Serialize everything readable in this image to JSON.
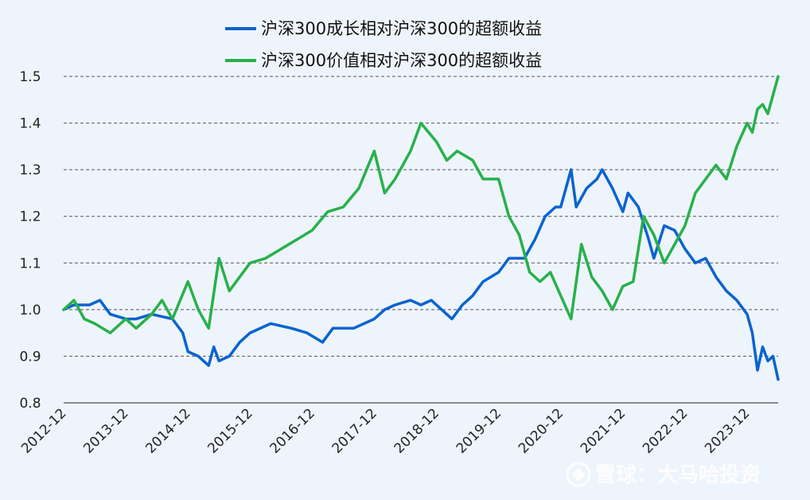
{
  "chart_data": {
    "type": "line",
    "title": "",
    "xlabel": "",
    "ylabel": "",
    "x_ticks": [
      "2012-12",
      "2013-12",
      "2014-12",
      "2015-12",
      "2016-12",
      "2017-12",
      "2018-12",
      "2019-12",
      "2020-12",
      "2021-12",
      "2022-12",
      "2023-12"
    ],
    "y_ticks": [
      "0.8",
      "0.9",
      "1.0",
      "1.1",
      "1.2",
      "1.3",
      "1.4",
      "1.5"
    ],
    "ylim": [
      0.8,
      1.5
    ],
    "xlim": [
      "2012-12",
      "2024-06"
    ],
    "grid": "horizontal dashed",
    "legend_position": "top-center",
    "series": [
      {
        "name": "沪深300成长相对沪深300的超额收益",
        "color": "#0a63cf",
        "points": [
          [
            "2012-12",
            1.0
          ],
          [
            "2013-02",
            1.01
          ],
          [
            "2013-05",
            1.01
          ],
          [
            "2013-07",
            1.02
          ],
          [
            "2013-09",
            0.99
          ],
          [
            "2013-12",
            0.98
          ],
          [
            "2014-02",
            0.98
          ],
          [
            "2014-05",
            0.99
          ],
          [
            "2014-09",
            0.98
          ],
          [
            "2014-11",
            0.95
          ],
          [
            "2014-12",
            0.91
          ],
          [
            "2015-02",
            0.9
          ],
          [
            "2015-04",
            0.88
          ],
          [
            "2015-05",
            0.92
          ],
          [
            "2015-06",
            0.89
          ],
          [
            "2015-08",
            0.9
          ],
          [
            "2015-10",
            0.93
          ],
          [
            "2015-12",
            0.95
          ],
          [
            "2016-04",
            0.97
          ],
          [
            "2016-08",
            0.96
          ],
          [
            "2016-11",
            0.95
          ],
          [
            "2017-02",
            0.93
          ],
          [
            "2017-04",
            0.96
          ],
          [
            "2017-08",
            0.96
          ],
          [
            "2017-12",
            0.98
          ],
          [
            "2018-02",
            1.0
          ],
          [
            "2018-04",
            1.01
          ],
          [
            "2018-07",
            1.02
          ],
          [
            "2018-09",
            1.01
          ],
          [
            "2018-11",
            1.02
          ],
          [
            "2019-02",
            0.99
          ],
          [
            "2019-03",
            0.98
          ],
          [
            "2019-05",
            1.01
          ],
          [
            "2019-07",
            1.03
          ],
          [
            "2019-09",
            1.06
          ],
          [
            "2019-12",
            1.08
          ],
          [
            "2020-02",
            1.11
          ],
          [
            "2020-05",
            1.11
          ],
          [
            "2020-07",
            1.15
          ],
          [
            "2020-09",
            1.2
          ],
          [
            "2020-11",
            1.22
          ],
          [
            "2020-12",
            1.22
          ],
          [
            "2021-02",
            1.3
          ],
          [
            "2021-03",
            1.22
          ],
          [
            "2021-05",
            1.26
          ],
          [
            "2021-07",
            1.28
          ],
          [
            "2021-08",
            1.3
          ],
          [
            "2021-10",
            1.26
          ],
          [
            "2021-12",
            1.21
          ],
          [
            "2022-01",
            1.25
          ],
          [
            "2022-03",
            1.22
          ],
          [
            "2022-05",
            1.15
          ],
          [
            "2022-06",
            1.11
          ],
          [
            "2022-08",
            1.18
          ],
          [
            "2022-10",
            1.17
          ],
          [
            "2022-12",
            1.13
          ],
          [
            "2023-02",
            1.1
          ],
          [
            "2023-04",
            1.11
          ],
          [
            "2023-06",
            1.07
          ],
          [
            "2023-08",
            1.04
          ],
          [
            "2023-10",
            1.02
          ],
          [
            "2023-12",
            0.99
          ],
          [
            "2024-01",
            0.95
          ],
          [
            "2024-02",
            0.87
          ],
          [
            "2024-03",
            0.92
          ],
          [
            "2024-04",
            0.89
          ],
          [
            "2024-05",
            0.9
          ],
          [
            "2024-06",
            0.85
          ]
        ]
      },
      {
        "name": "沪深300价值相对沪深300的超额收益",
        "color": "#27b14a",
        "points": [
          [
            "2012-12",
            1.0
          ],
          [
            "2013-02",
            1.02
          ],
          [
            "2013-04",
            0.98
          ],
          [
            "2013-06",
            0.97
          ],
          [
            "2013-09",
            0.95
          ],
          [
            "2013-12",
            0.98
          ],
          [
            "2014-02",
            0.96
          ],
          [
            "2014-05",
            0.99
          ],
          [
            "2014-07",
            1.02
          ],
          [
            "2014-09",
            0.98
          ],
          [
            "2014-12",
            1.06
          ],
          [
            "2015-02",
            1.0
          ],
          [
            "2015-04",
            0.96
          ],
          [
            "2015-06",
            1.11
          ],
          [
            "2015-08",
            1.04
          ],
          [
            "2015-10",
            1.07
          ],
          [
            "2015-12",
            1.1
          ],
          [
            "2016-03",
            1.11
          ],
          [
            "2016-06",
            1.13
          ],
          [
            "2016-09",
            1.15
          ],
          [
            "2016-12",
            1.17
          ],
          [
            "2017-03",
            1.21
          ],
          [
            "2017-06",
            1.22
          ],
          [
            "2017-09",
            1.26
          ],
          [
            "2017-12",
            1.34
          ],
          [
            "2018-02",
            1.25
          ],
          [
            "2018-04",
            1.28
          ],
          [
            "2018-07",
            1.34
          ],
          [
            "2018-09",
            1.4
          ],
          [
            "2018-12",
            1.36
          ],
          [
            "2019-02",
            1.32
          ],
          [
            "2019-04",
            1.34
          ],
          [
            "2019-07",
            1.32
          ],
          [
            "2019-09",
            1.28
          ],
          [
            "2019-12",
            1.28
          ],
          [
            "2020-02",
            1.2
          ],
          [
            "2020-04",
            1.16
          ],
          [
            "2020-06",
            1.08
          ],
          [
            "2020-08",
            1.06
          ],
          [
            "2020-10",
            1.08
          ],
          [
            "2020-12",
            1.03
          ],
          [
            "2021-02",
            0.98
          ],
          [
            "2021-04",
            1.14
          ],
          [
            "2021-06",
            1.07
          ],
          [
            "2021-08",
            1.04
          ],
          [
            "2021-10",
            1.0
          ],
          [
            "2021-12",
            1.05
          ],
          [
            "2022-02",
            1.06
          ],
          [
            "2022-04",
            1.2
          ],
          [
            "2022-06",
            1.16
          ],
          [
            "2022-08",
            1.1
          ],
          [
            "2022-10",
            1.14
          ],
          [
            "2022-12",
            1.18
          ],
          [
            "2023-02",
            1.25
          ],
          [
            "2023-04",
            1.28
          ],
          [
            "2023-06",
            1.31
          ],
          [
            "2023-08",
            1.28
          ],
          [
            "2023-10",
            1.35
          ],
          [
            "2023-12",
            1.4
          ],
          [
            "2024-01",
            1.38
          ],
          [
            "2024-02",
            1.43
          ],
          [
            "2024-03",
            1.44
          ],
          [
            "2024-04",
            1.42
          ],
          [
            "2024-05",
            1.46
          ],
          [
            "2024-06",
            1.5
          ]
        ]
      }
    ]
  },
  "watermark": {
    "text": "雪球：大马哈投资",
    "icon": "snowball-logo-icon"
  }
}
